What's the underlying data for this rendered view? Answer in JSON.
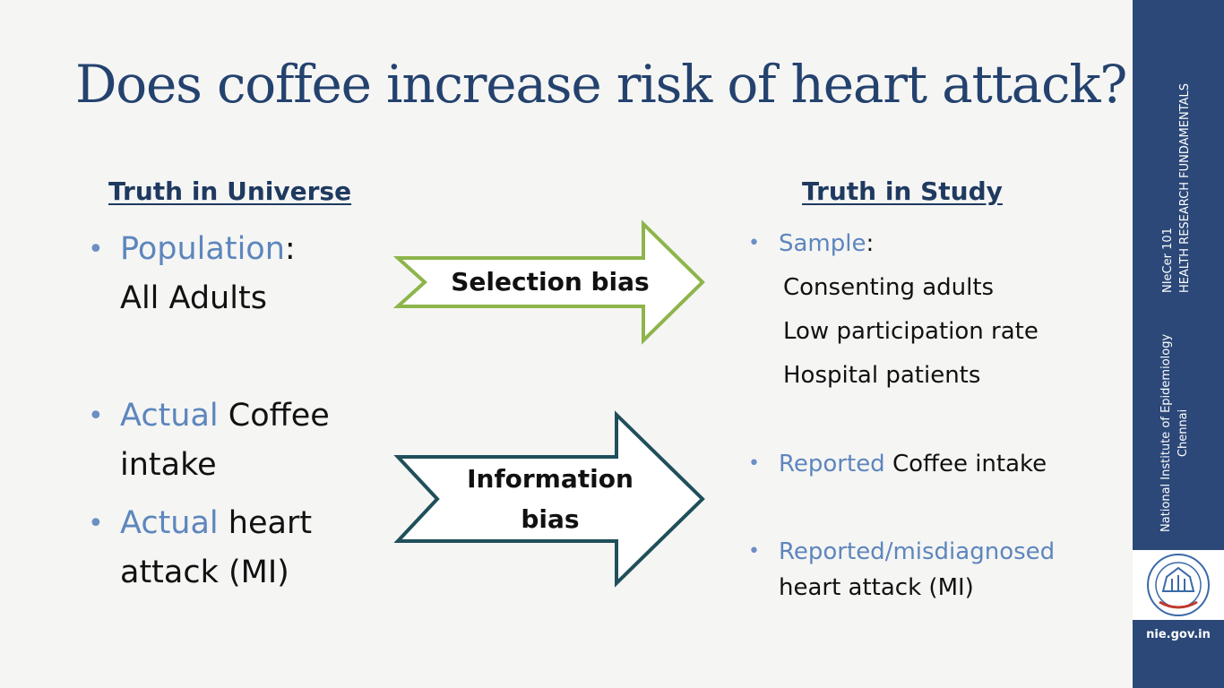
{
  "title": "Does coffee increase risk of heart attack?",
  "left_column": {
    "heading": "Truth in Universe",
    "population": {
      "highlight": "Population",
      "rest": ":",
      "line2": "All Adults"
    },
    "coffee": {
      "highlight": "Actual",
      "rest": " Coffee",
      "line2": "intake"
    },
    "heart": {
      "highlight": "Actual",
      "rest": " heart",
      "line2": "attack (MI)"
    }
  },
  "right_column": {
    "heading": "Truth in Study",
    "sample": {
      "highlight": "Sample",
      "rest": ":",
      "items": [
        "Consenting adults",
        "Low participation rate",
        "Hospital patients"
      ]
    },
    "coffee": {
      "highlight": "Reported",
      "rest": " Coffee intake"
    },
    "heart": {
      "highlight": "Reported/misdiagnosed",
      "line2": "heart attack (MI)"
    }
  },
  "arrows": {
    "selection": {
      "line1": "Selection bias",
      "outline_color": "#8db54a"
    },
    "information": {
      "line1": "Information",
      "line2": "bias",
      "outline_color": "#1f4f5a"
    }
  },
  "sidebar": {
    "course_line1": "NIeCer 101",
    "course_line2": "HEALTH RESEARCH FUNDAMENTALS",
    "institute_line1": "National Institute of Epidemiology",
    "institute_line2": "Chennai",
    "website": "nie.gov.in",
    "logo_icon": "icmr-seal-icon",
    "background_color": "#2b4878"
  }
}
